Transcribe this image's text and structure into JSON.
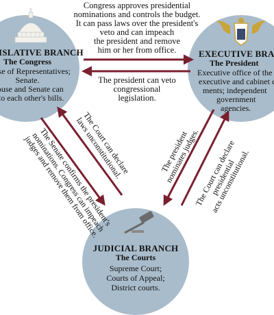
{
  "congress": {
    "heading": "LEGISLATIVE BRANCH",
    "subheading": "The Congress",
    "lines": [
      "House of Representatives;",
      "Senate.",
      "House and Senate can",
      "veto each other's bills."
    ],
    "icon": "capitol-dome-icon"
  },
  "president": {
    "heading": "EXECUTIVE BRANCH",
    "subheading": "The President",
    "lines": [
      "Executive office of the president;",
      "executive and cabinet depart-",
      "ments; independent",
      "government",
      "agencies."
    ],
    "icon": "eagle-seal-icon"
  },
  "courts": {
    "heading": "JUDICIAL BRANCH",
    "subheading": "The  Courts",
    "lines": [
      "Supreme Court;",
      "Courts of Appeal;",
      "District courts."
    ],
    "icon": "gavel-icon"
  },
  "checks": {
    "congress_on_president": [
      "Congress approves presidential",
      "nominations and controls the budget.",
      "It can pass laws over the president's",
      "veto and can impeach",
      "the president and remove",
      "him or her from office."
    ],
    "president_on_congress": [
      "The president can veto",
      "congressional",
      "legislation."
    ],
    "courts_on_congress": [
      "The Court can declare",
      "laws unconstitutional."
    ],
    "congress_on_courts": [
      "The Senate confirms the president's",
      "nominations. Congress can impeach",
      "judges and remove them from office."
    ],
    "president_on_courts": [
      "The president",
      "nominates judges."
    ],
    "courts_on_president": [
      "The Court can declare",
      "presidential",
      "acts unconstitutional."
    ]
  },
  "colors": {
    "circle": "#a9bccb",
    "arrow": "#7a1f2e",
    "eagle": "#c9a43a"
  }
}
